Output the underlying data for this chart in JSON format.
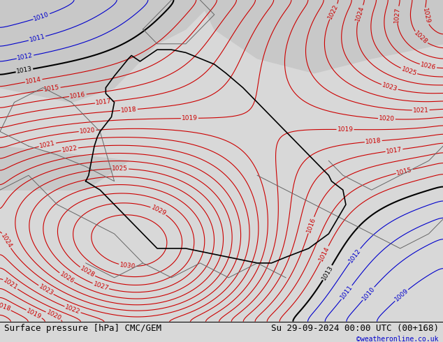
{
  "title_left": "Surface pressure [hPa] CMC/GEM",
  "title_right": "Su 29-09-2024 00:00 UTC (00+168)",
  "watermark": "©weatheronline.co.uk",
  "bg_color_land": "#c8e6a0",
  "bg_color_sea": "#d8d8d8",
  "isobar_color_red": "#cc0000",
  "isobar_color_blue": "#0000cc",
  "isobar_color_black": "#000000",
  "font_size_title": 9,
  "font_size_label": 7,
  "font_size_watermark": 7,
  "pressure_min": 1009,
  "pressure_max": 1030,
  "bottom_bar_color": "#000000",
  "bottom_bar_height": 0.06
}
